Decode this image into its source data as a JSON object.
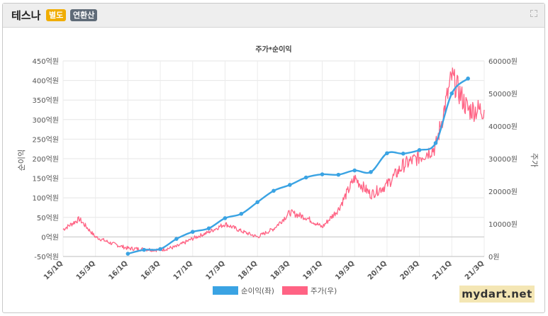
{
  "header": {
    "title": "테스나",
    "badge_separate": "별도",
    "badge_annual": "연환산",
    "expand_icon": "expand-icon"
  },
  "watermark": "mydart.net",
  "chart_data": {
    "type": "line",
    "title": "주가*순이익",
    "categories": [
      "15/1Q",
      "15/3Q",
      "16/1Q",
      "16/3Q",
      "17/1Q",
      "17/3Q",
      "18/1Q",
      "18/3Q",
      "19/1Q",
      "19/3Q",
      "20/1Q",
      "20/3Q",
      "21/1Q",
      "21/3Q"
    ],
    "left_axis": {
      "label": "순이익",
      "ticks": [
        "450억원",
        "400억원",
        "350억원",
        "300억원",
        "250억원",
        "200억원",
        "150억원",
        "100억원",
        "50억원",
        "0억원",
        "-50억원"
      ],
      "ylim": [
        -50,
        450
      ],
      "unit": "억원"
    },
    "right_axis": {
      "label": "주가",
      "ticks": [
        "60000원",
        "50000원",
        "40000원",
        "30000원",
        "20000원",
        "10000원",
        "0원"
      ],
      "ylim": [
        0,
        60000
      ],
      "unit": "원"
    },
    "series": [
      {
        "name": "순이익(좌)",
        "color": "#3aa3e3",
        "axis": "left",
        "x": [
          "16/1Q",
          "16/2Q",
          "16/3Q",
          "16/4Q",
          "17/1Q",
          "17/2Q",
          "17/3Q",
          "17/4Q",
          "18/1Q",
          "18/2Q",
          "18/3Q",
          "18/4Q",
          "19/1Q",
          "19/2Q",
          "19/3Q",
          "19/4Q",
          "20/1Q",
          "20/2Q",
          "20/3Q",
          "20/4Q",
          "21/1Q",
          "21/2Q"
        ],
        "values": [
          -43,
          -33,
          -31,
          -5,
          13,
          22,
          48,
          59,
          89,
          118,
          133,
          152,
          160,
          159,
          170,
          166,
          214,
          213,
          222,
          240,
          367,
          405
        ]
      },
      {
        "name": "주가(우)",
        "color": "#ff6384",
        "axis": "right",
        "x": [
          "15/1Q",
          "15/2Q",
          "15/3Q",
          "15/4Q",
          "16/1Q",
          "16/2Q",
          "16/3Q",
          "16/4Q",
          "17/1Q",
          "17/2Q",
          "17/3Q",
          "17/4Q",
          "18/1Q",
          "18/2Q",
          "18/3Q",
          "18/4Q",
          "19/1Q",
          "19/2Q",
          "19/3Q",
          "19/4Q",
          "20/1Q",
          "20/2Q",
          "20/3Q",
          "20/4Q",
          "21/1Q",
          "21/2Q",
          "21/3Q"
        ],
        "values": [
          8300,
          11500,
          6000,
          4000,
          2500,
          2200,
          2000,
          3000,
          5500,
          7500,
          10000,
          7800,
          6000,
          8500,
          13500,
          12000,
          9000,
          14500,
          24000,
          19000,
          22000,
          28000,
          30500,
          33500,
          55000,
          45000,
          45000
        ]
      }
    ],
    "legend": {
      "position": "bottom",
      "entries": [
        "순이익(좌)",
        "주가(우)"
      ]
    },
    "grid": true
  }
}
